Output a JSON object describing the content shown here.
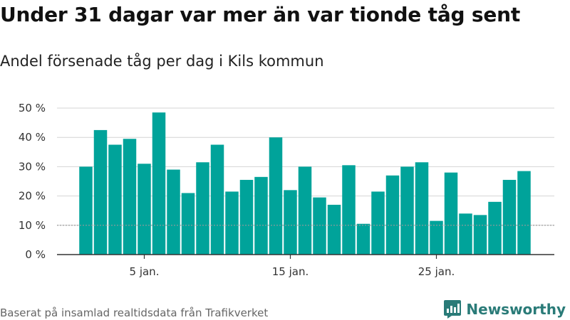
{
  "header": {
    "title": "Under 31 dagar var mer än var tionde tåg sent",
    "subtitle": "Andel försenade tåg per dag i Kils kommun"
  },
  "footer": {
    "source": "Baserat på insamlad realtidsdata från Trafikverket",
    "brand": "Newsworthy"
  },
  "colors": {
    "bar": "#00a39a",
    "grid": "#d4d4d4",
    "axis": "#333333",
    "reference_line": "#999999",
    "brand": "#2a7b78"
  },
  "brand_icon": "newsworthy-bar-chart-icon",
  "chart_data": {
    "type": "bar",
    "title": "",
    "xlabel": "",
    "ylabel": "",
    "x": [
      1,
      2,
      3,
      4,
      5,
      6,
      7,
      8,
      9,
      10,
      11,
      12,
      13,
      14,
      15,
      16,
      17,
      18,
      19,
      20,
      21,
      22,
      23,
      24,
      25,
      26,
      27,
      28,
      29,
      30,
      31
    ],
    "values": [
      30,
      42.5,
      37.5,
      39.5,
      31,
      48.5,
      29,
      21,
      31.5,
      37.5,
      21.5,
      25.5,
      26.5,
      40,
      22,
      30,
      19.5,
      17,
      30.5,
      10.5,
      21.5,
      27,
      30,
      31.5,
      11.5,
      28,
      14,
      13.5,
      18,
      25.5,
      28.5
    ],
    "ylim": [
      0,
      50
    ],
    "y_ticks": [
      0,
      10,
      20,
      30,
      40,
      50
    ],
    "y_tick_labels": [
      "0 %",
      "10 %",
      "20 %",
      "30 %",
      "40 %",
      "50 %"
    ],
    "x_ticks": [
      5,
      15,
      25
    ],
    "x_tick_labels": [
      "5 jan.",
      "15 jan.",
      "25 jan."
    ],
    "reference_line": 10,
    "grid": true,
    "legend": "none"
  }
}
